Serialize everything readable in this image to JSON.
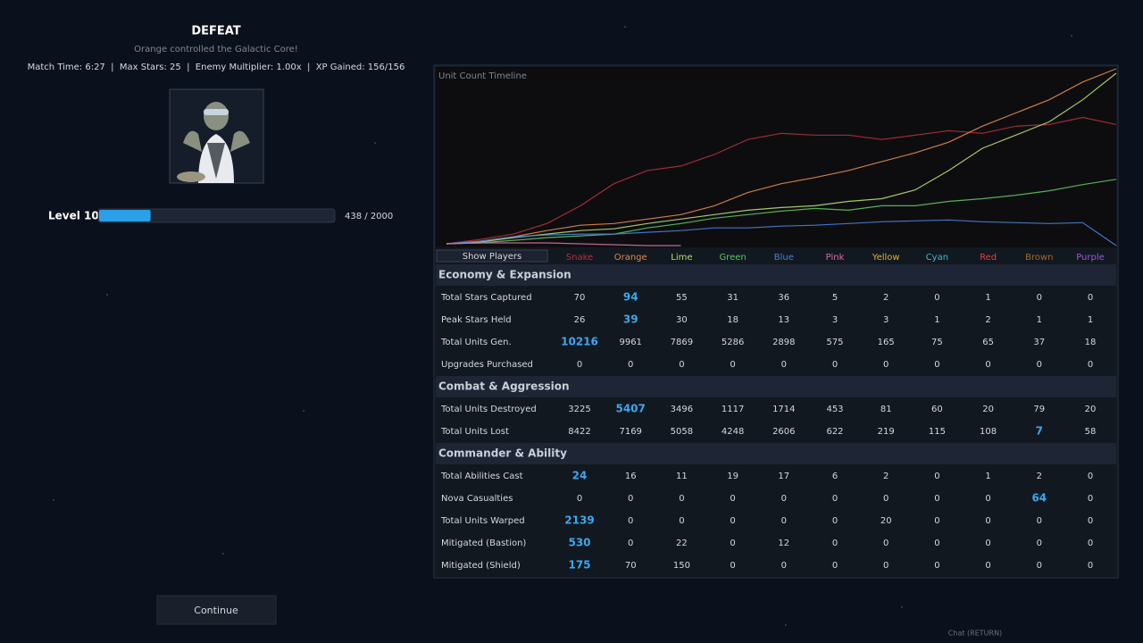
{
  "header": {
    "title": "DEFEAT",
    "subtitle": "Orange controlled the Galactic Core!",
    "match_info": "Match Time: 6:27  |  Max Stars: 25  |  Enemy Multiplier: 1.00x  |  XP Gained: 156/156"
  },
  "level": {
    "label": "Level 10",
    "xp": 438,
    "xp_max": 2000,
    "xp_label": "438 / 2000"
  },
  "continue_button": "Continue",
  "chat_hint": "Chat (RETURN)",
  "stats": {
    "show_players": "Show Players",
    "timeline": {
      "title": "Unit Count Timeline",
      "x": [
        0,
        1,
        2,
        3,
        4,
        5,
        6,
        7,
        8,
        9,
        10,
        11,
        12,
        13,
        14,
        15,
        16,
        17,
        18,
        19,
        20
      ],
      "xlim": [
        0,
        20
      ],
      "ylim": [
        0,
        100
      ]
    },
    "players": [
      {
        "name": "Snake",
        "color": "#b0303a",
        "timeline": [
          1,
          3.5,
          6.5,
          12.5,
          22.5,
          35,
          42.5,
          45,
          51.5,
          60,
          63.5,
          62.5,
          62.5,
          60,
          62.5,
          65,
          63.5,
          67.5,
          68.5,
          72.5,
          68.5
        ]
      },
      {
        "name": "Orange",
        "color": "#e08a4a",
        "timeline": [
          1,
          2.5,
          5,
          8.5,
          11.5,
          12.5,
          15,
          17.5,
          22.5,
          30,
          35,
          38.5,
          42.5,
          47.5,
          52.5,
          58.5,
          67.5,
          75,
          82.5,
          92.5,
          100
        ]
      },
      {
        "name": "Lime",
        "color": "#b8dc70",
        "timeline": [
          1,
          2,
          4.5,
          6.5,
          8.5,
          9.5,
          12.5,
          15,
          17.5,
          20,
          21.5,
          22.5,
          25,
          26.5,
          31.5,
          42.5,
          55,
          62.5,
          70,
          82.5,
          97.5
        ]
      },
      {
        "name": "Green",
        "color": "#5cc45c",
        "timeline": [
          1,
          1.5,
          3,
          4.5,
          5.5,
          6.5,
          10,
          12.5,
          15.5,
          17.5,
          19.5,
          21,
          20,
          22.5,
          22.5,
          25,
          26.5,
          28.5,
          31,
          34.5,
          37.5
        ]
      },
      {
        "name": "Blue",
        "color": "#4a7fd8",
        "timeline": [
          1,
          2.5,
          5,
          6,
          6.5,
          6.5,
          7.5,
          8.5,
          10,
          10,
          11,
          11.5,
          12.5,
          13.5,
          14,
          14.5,
          13.5,
          13,
          12.5,
          13,
          0
        ]
      },
      {
        "name": "Pink",
        "color": "#d070a8",
        "timeline": [
          1,
          1.5,
          1.5,
          1.5,
          1,
          0.5,
          0,
          0,
          null,
          null,
          null,
          null,
          null,
          null,
          null,
          null,
          null,
          null,
          null,
          null,
          null
        ]
      },
      {
        "name": "Yellow",
        "color": "#d8b040"
      },
      {
        "name": "Cyan",
        "color": "#40b8c8"
      },
      {
        "name": "Red",
        "color": "#d04848"
      },
      {
        "name": "Brown",
        "color": "#a06a30"
      },
      {
        "name": "Purple",
        "color": "#9a58d0"
      }
    ],
    "sections": [
      {
        "title": "Economy & Expansion",
        "rows": [
          {
            "label": "Total Stars Captured",
            "values": [
              70,
              94,
              55,
              31,
              36,
              5,
              2,
              0,
              1,
              0,
              0
            ],
            "highlight": 1
          },
          {
            "label": "Peak Stars Held",
            "values": [
              26,
              39,
              30,
              18,
              13,
              3,
              3,
              1,
              2,
              1,
              1
            ],
            "highlight": 1
          },
          {
            "label": "Total Units Gen.",
            "values": [
              10216,
              9961,
              7869,
              5286,
              2898,
              575,
              165,
              75,
              65,
              37,
              18
            ],
            "highlight": 0
          },
          {
            "label": "Upgrades Purchased",
            "values": [
              0,
              0,
              0,
              0,
              0,
              0,
              0,
              0,
              0,
              0,
              0
            ]
          }
        ]
      },
      {
        "title": "Combat & Aggression",
        "rows": [
          {
            "label": "Total Units Destroyed",
            "values": [
              3225,
              5407,
              3496,
              1117,
              1714,
              453,
              81,
              60,
              20,
              79,
              20
            ],
            "highlight": 1
          },
          {
            "label": "Total Units Lost",
            "values": [
              8422,
              7169,
              5058,
              4248,
              2606,
              622,
              219,
              115,
              108,
              7,
              58
            ],
            "highlight": 9
          }
        ]
      },
      {
        "title": "Commander & Ability",
        "rows": [
          {
            "label": "Total Abilities Cast",
            "values": [
              24,
              16,
              11,
              19,
              17,
              6,
              2,
              0,
              1,
              2,
              0
            ],
            "highlight": 0
          },
          {
            "label": "Nova Casualties",
            "values": [
              0,
              0,
              0,
              0,
              0,
              0,
              0,
              0,
              0,
              64,
              0
            ],
            "highlight": 9
          },
          {
            "label": "Total Units Warped",
            "values": [
              2139,
              0,
              0,
              0,
              0,
              0,
              20,
              0,
              0,
              0,
              0
            ],
            "highlight": 0
          },
          {
            "label": "Mitigated (Bastion)",
            "values": [
              530,
              0,
              22,
              0,
              12,
              0,
              0,
              0,
              0,
              0,
              0
            ],
            "highlight": 0
          },
          {
            "label": "Mitigated (Shield)",
            "values": [
              175,
              70,
              150,
              0,
              0,
              0,
              0,
              0,
              0,
              0,
              0
            ],
            "highlight": 0
          }
        ]
      }
    ]
  }
}
